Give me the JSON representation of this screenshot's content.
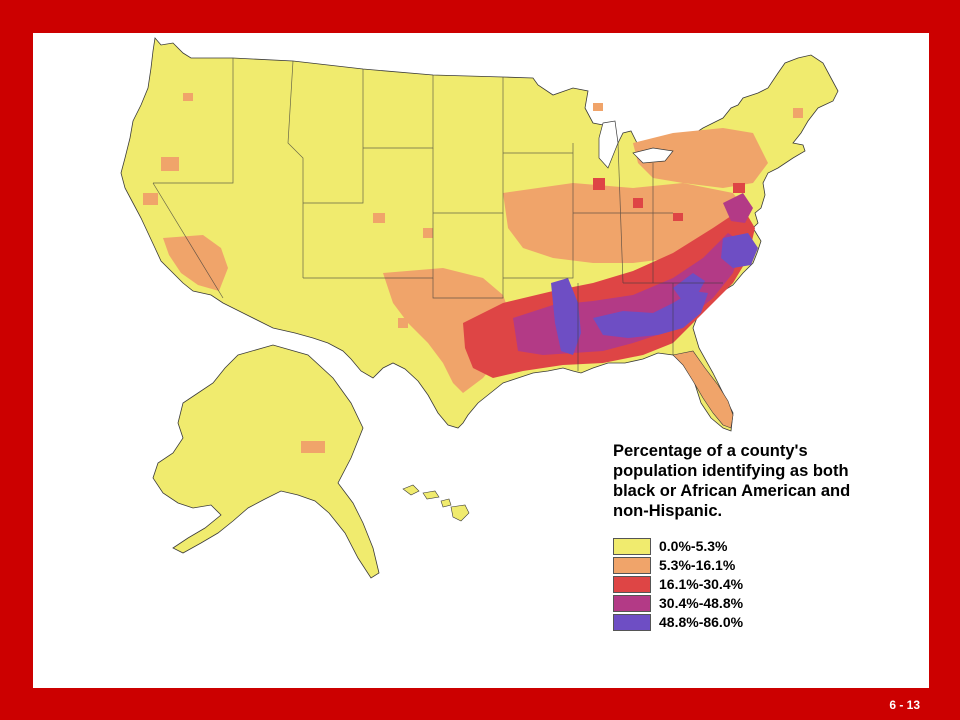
{
  "legend": {
    "title_lines": [
      "Percentage of a county's",
      "population identifying as both",
      "black or African American and",
      "non-Hispanic."
    ],
    "items": [
      {
        "label": "0.0%-5.3%",
        "color": "#f0eb6e"
      },
      {
        "label": "5.3%-16.1%",
        "color": "#f0a46a"
      },
      {
        "label": "16.1%-30.4%",
        "color": "#de4545"
      },
      {
        "label": "30.4%-48.8%",
        "color": "#b33a86"
      },
      {
        "label": "48.8%-86.0%",
        "color": "#6e4ec4"
      }
    ]
  },
  "slide_number": "6 - 13",
  "colors": {
    "frame": "#cc0000",
    "panel": "#ffffff",
    "border_lines": "#3a3a3a"
  }
}
